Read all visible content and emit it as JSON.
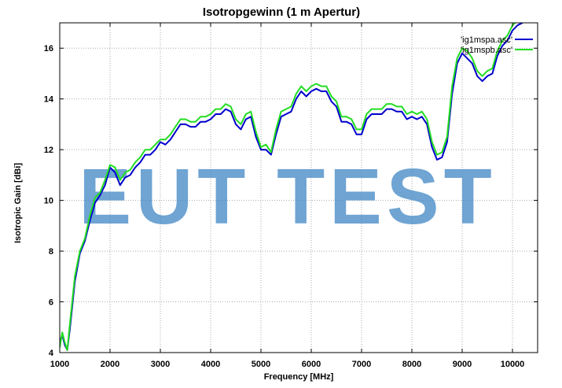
{
  "chart_data": {
    "type": "line",
    "title": "Isotropgewinn (1 m Apertur)",
    "xlabel": "Frequency [MHz]",
    "ylabel": "Isotropic Gain [dBi]",
    "xlim": [
      1000,
      10500
    ],
    "ylim": [
      4,
      17
    ],
    "xticks": [
      1000,
      2000,
      3000,
      4000,
      5000,
      6000,
      7000,
      8000,
      9000,
      10000
    ],
    "yticks": [
      4,
      6,
      8,
      10,
      12,
      14,
      16
    ],
    "grid": true,
    "legend_position": "top-right",
    "watermark": "EUT TEST",
    "series": [
      {
        "name": "'ig1mspa.asc'",
        "color": "#0000cc",
        "x": [
          1000,
          1050,
          1100,
          1150,
          1200,
          1300,
          1400,
          1500,
          1600,
          1700,
          1800,
          1900,
          2000,
          2100,
          2200,
          2300,
          2400,
          2500,
          2600,
          2700,
          2800,
          2900,
          3000,
          3100,
          3200,
          3300,
          3400,
          3500,
          3600,
          3700,
          3800,
          3900,
          4000,
          4100,
          4200,
          4300,
          4400,
          4500,
          4600,
          4700,
          4800,
          4900,
          5000,
          5100,
          5200,
          5300,
          5400,
          5500,
          5600,
          5700,
          5800,
          5900,
          6000,
          6100,
          6200,
          6300,
          6400,
          6500,
          6600,
          6700,
          6800,
          6900,
          7000,
          7100,
          7200,
          7300,
          7400,
          7500,
          7600,
          7700,
          7800,
          7900,
          8000,
          8100,
          8200,
          8300,
          8400,
          8500,
          8600,
          8700,
          8800,
          8900,
          9000,
          9100,
          9200,
          9300,
          9400,
          9500,
          9600,
          9700,
          9800,
          9900,
          10000,
          10100,
          10200
        ],
        "values": [
          4.4,
          4.7,
          4.3,
          4.1,
          4.9,
          6.8,
          7.9,
          8.4,
          9.2,
          9.9,
          10.2,
          10.6,
          11.3,
          11.1,
          10.6,
          10.9,
          11.0,
          11.3,
          11.5,
          11.8,
          11.8,
          12.0,
          12.3,
          12.2,
          12.4,
          12.7,
          13.0,
          13.0,
          12.9,
          12.9,
          13.1,
          13.1,
          13.2,
          13.4,
          13.4,
          13.6,
          13.5,
          13.0,
          12.8,
          13.2,
          13.3,
          12.5,
          12.0,
          12.0,
          11.8,
          12.6,
          13.3,
          13.4,
          13.5,
          14.0,
          14.3,
          14.1,
          14.3,
          14.4,
          14.3,
          14.3,
          13.9,
          13.7,
          13.1,
          13.1,
          13.0,
          12.6,
          12.6,
          13.2,
          13.4,
          13.4,
          13.4,
          13.6,
          13.6,
          13.5,
          13.5,
          13.2,
          13.3,
          13.2,
          13.3,
          13.0,
          12.1,
          11.6,
          11.7,
          12.3,
          14.2,
          15.4,
          15.8,
          15.6,
          15.4,
          14.9,
          14.7,
          14.9,
          15.0,
          15.7,
          16.1,
          16.3,
          16.7,
          16.9,
          17.0
        ]
      },
      {
        "name": "'ig1mspb.asc'",
        "color": "#22dd22",
        "x": [
          1000,
          1050,
          1100,
          1150,
          1200,
          1300,
          1400,
          1500,
          1600,
          1700,
          1800,
          1900,
          2000,
          2100,
          2200,
          2300,
          2400,
          2500,
          2600,
          2700,
          2800,
          2900,
          3000,
          3100,
          3200,
          3300,
          3400,
          3500,
          3600,
          3700,
          3800,
          3900,
          4000,
          4100,
          4200,
          4300,
          4400,
          4500,
          4600,
          4700,
          4800,
          4900,
          5000,
          5100,
          5200,
          5300,
          5400,
          5500,
          5600,
          5700,
          5800,
          5900,
          6000,
          6100,
          6200,
          6300,
          6400,
          6500,
          6600,
          6700,
          6800,
          6900,
          7000,
          7100,
          7200,
          7300,
          7400,
          7500,
          7600,
          7700,
          7800,
          7900,
          8000,
          8100,
          8200,
          8300,
          8400,
          8500,
          8600,
          8700,
          8800,
          8900,
          9000,
          9100,
          9200,
          9300,
          9400,
          9500,
          9600,
          9700,
          9800,
          9900,
          10000,
          10100,
          10200
        ],
        "values": [
          4.2,
          4.8,
          4.4,
          4.1,
          5.1,
          7.0,
          8.0,
          8.5,
          9.4,
          10.1,
          10.3,
          10.8,
          11.4,
          11.3,
          10.8,
          11.1,
          11.2,
          11.5,
          11.7,
          12.0,
          12.0,
          12.2,
          12.4,
          12.4,
          12.6,
          12.9,
          13.2,
          13.2,
          13.1,
          13.1,
          13.3,
          13.3,
          13.4,
          13.6,
          13.6,
          13.8,
          13.7,
          13.2,
          13.0,
          13.4,
          13.5,
          12.7,
          12.1,
          12.2,
          11.9,
          12.8,
          13.5,
          13.6,
          13.7,
          14.2,
          14.5,
          14.3,
          14.5,
          14.6,
          14.5,
          14.5,
          14.1,
          13.9,
          13.3,
          13.3,
          13.2,
          12.8,
          12.8,
          13.4,
          13.6,
          13.6,
          13.6,
          13.8,
          13.8,
          13.7,
          13.7,
          13.4,
          13.5,
          13.4,
          13.5,
          13.2,
          12.3,
          11.8,
          11.9,
          12.5,
          14.5,
          15.6,
          16.0,
          15.9,
          15.6,
          15.1,
          14.9,
          15.1,
          15.2,
          15.9,
          16.3,
          16.5,
          16.9,
          17.1,
          17.2
        ]
      }
    ]
  }
}
